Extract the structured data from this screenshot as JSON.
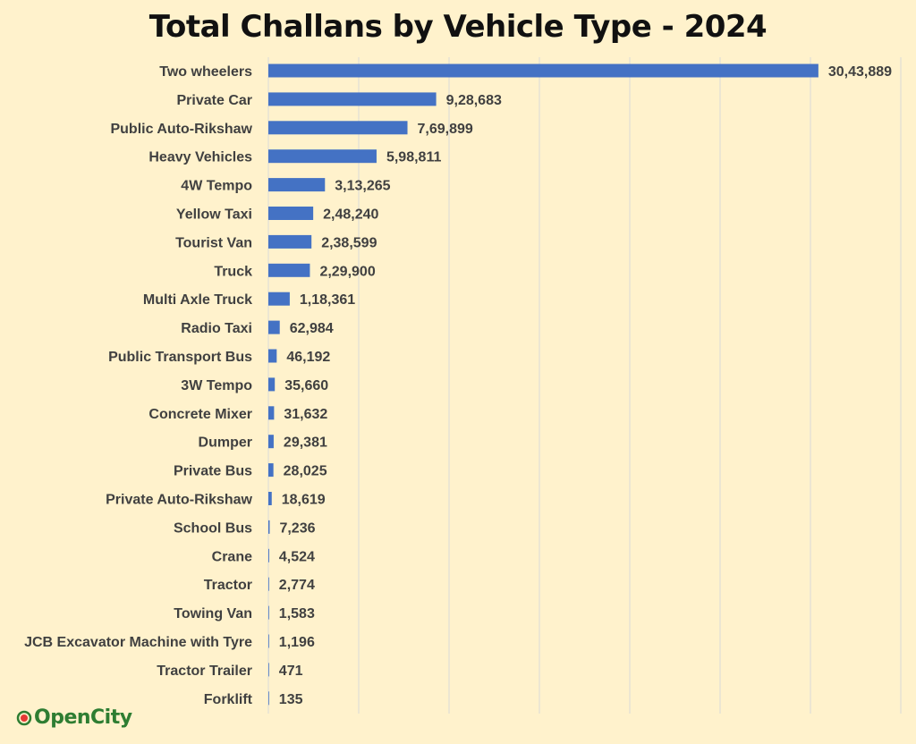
{
  "chart_data": {
    "type": "bar",
    "orientation": "horizontal",
    "title": "Total Challans by Vehicle Type - 2024",
    "categories": [
      "Two wheelers",
      "Private Car",
      "Public Auto-Rikshaw",
      "Heavy Vehicles",
      "4W Tempo",
      "Yellow Taxi",
      "Tourist Van",
      "Truck",
      "Multi Axle Truck",
      "Radio Taxi",
      "Public Transport Bus",
      "3W Tempo",
      "Concrete Mixer",
      "Dumper",
      "Private Bus",
      "Private Auto-Rikshaw",
      "School Bus",
      "Crane",
      "Tractor",
      "Towing Van",
      "JCB Excavator Machine with Tyre",
      "Tractor Trailer",
      "Forklift"
    ],
    "values": [
      3043889,
      928683,
      769899,
      598811,
      313265,
      248240,
      238599,
      229900,
      118361,
      62984,
      46192,
      35660,
      31632,
      29381,
      28025,
      18619,
      7236,
      4524,
      2774,
      1583,
      1196,
      471,
      135
    ],
    "value_labels": [
      "30,43,889",
      "9,28,683",
      "7,69,899",
      "5,98,811",
      "3,13,265",
      "2,48,240",
      "2,38,599",
      "2,29,900",
      "1,18,361",
      "62,984",
      "46,192",
      "35,660",
      "31,632",
      "29,381",
      "28,025",
      "18,619",
      "7,236",
      "4,524",
      "2,774",
      "1,583",
      "1,196",
      "471",
      "135"
    ],
    "xlim": [
      0,
      3500000
    ],
    "grid": true,
    "colors": {
      "bar": "#4472c4",
      "background": "#fff2cc",
      "grid": "#d9d9d9"
    }
  },
  "branding": {
    "logo_text": "OpenCity",
    "logo_icon": "opencity-logo-icon"
  }
}
